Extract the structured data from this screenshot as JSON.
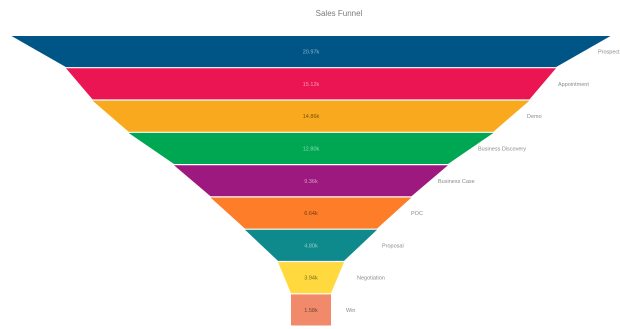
{
  "chart_data": {
    "type": "funnel",
    "title": "Sales Funnel",
    "stages": [
      {
        "label": "Prospect",
        "display": "20.97k",
        "value": 20970,
        "color": "#005587"
      },
      {
        "label": "Appointment",
        "display": "15.12k",
        "value": 15120,
        "color": "#ea1552"
      },
      {
        "label": "Demo",
        "display": "14.86k",
        "value": 14860,
        "color": "#f9a91d"
      },
      {
        "label": "Business Discovery",
        "display": "12.80k",
        "value": 12800,
        "color": "#00a753"
      },
      {
        "label": "Business Case",
        "display": "9.36k",
        "value": 9360,
        "color": "#9d197f"
      },
      {
        "label": "POC",
        "display": "6.64k",
        "value": 6640,
        "color": "#fd7d29"
      },
      {
        "label": "Proposal",
        "display": "4.80k",
        "value": 4800,
        "color": "#0e8a8d"
      },
      {
        "label": "Negotiation",
        "display": "3.94k",
        "value": 3940,
        "color": "#ffd93d"
      },
      {
        "label": "Win",
        "display": "1.58k",
        "value": 1580,
        "color": "#f08a6b"
      }
    ]
  }
}
